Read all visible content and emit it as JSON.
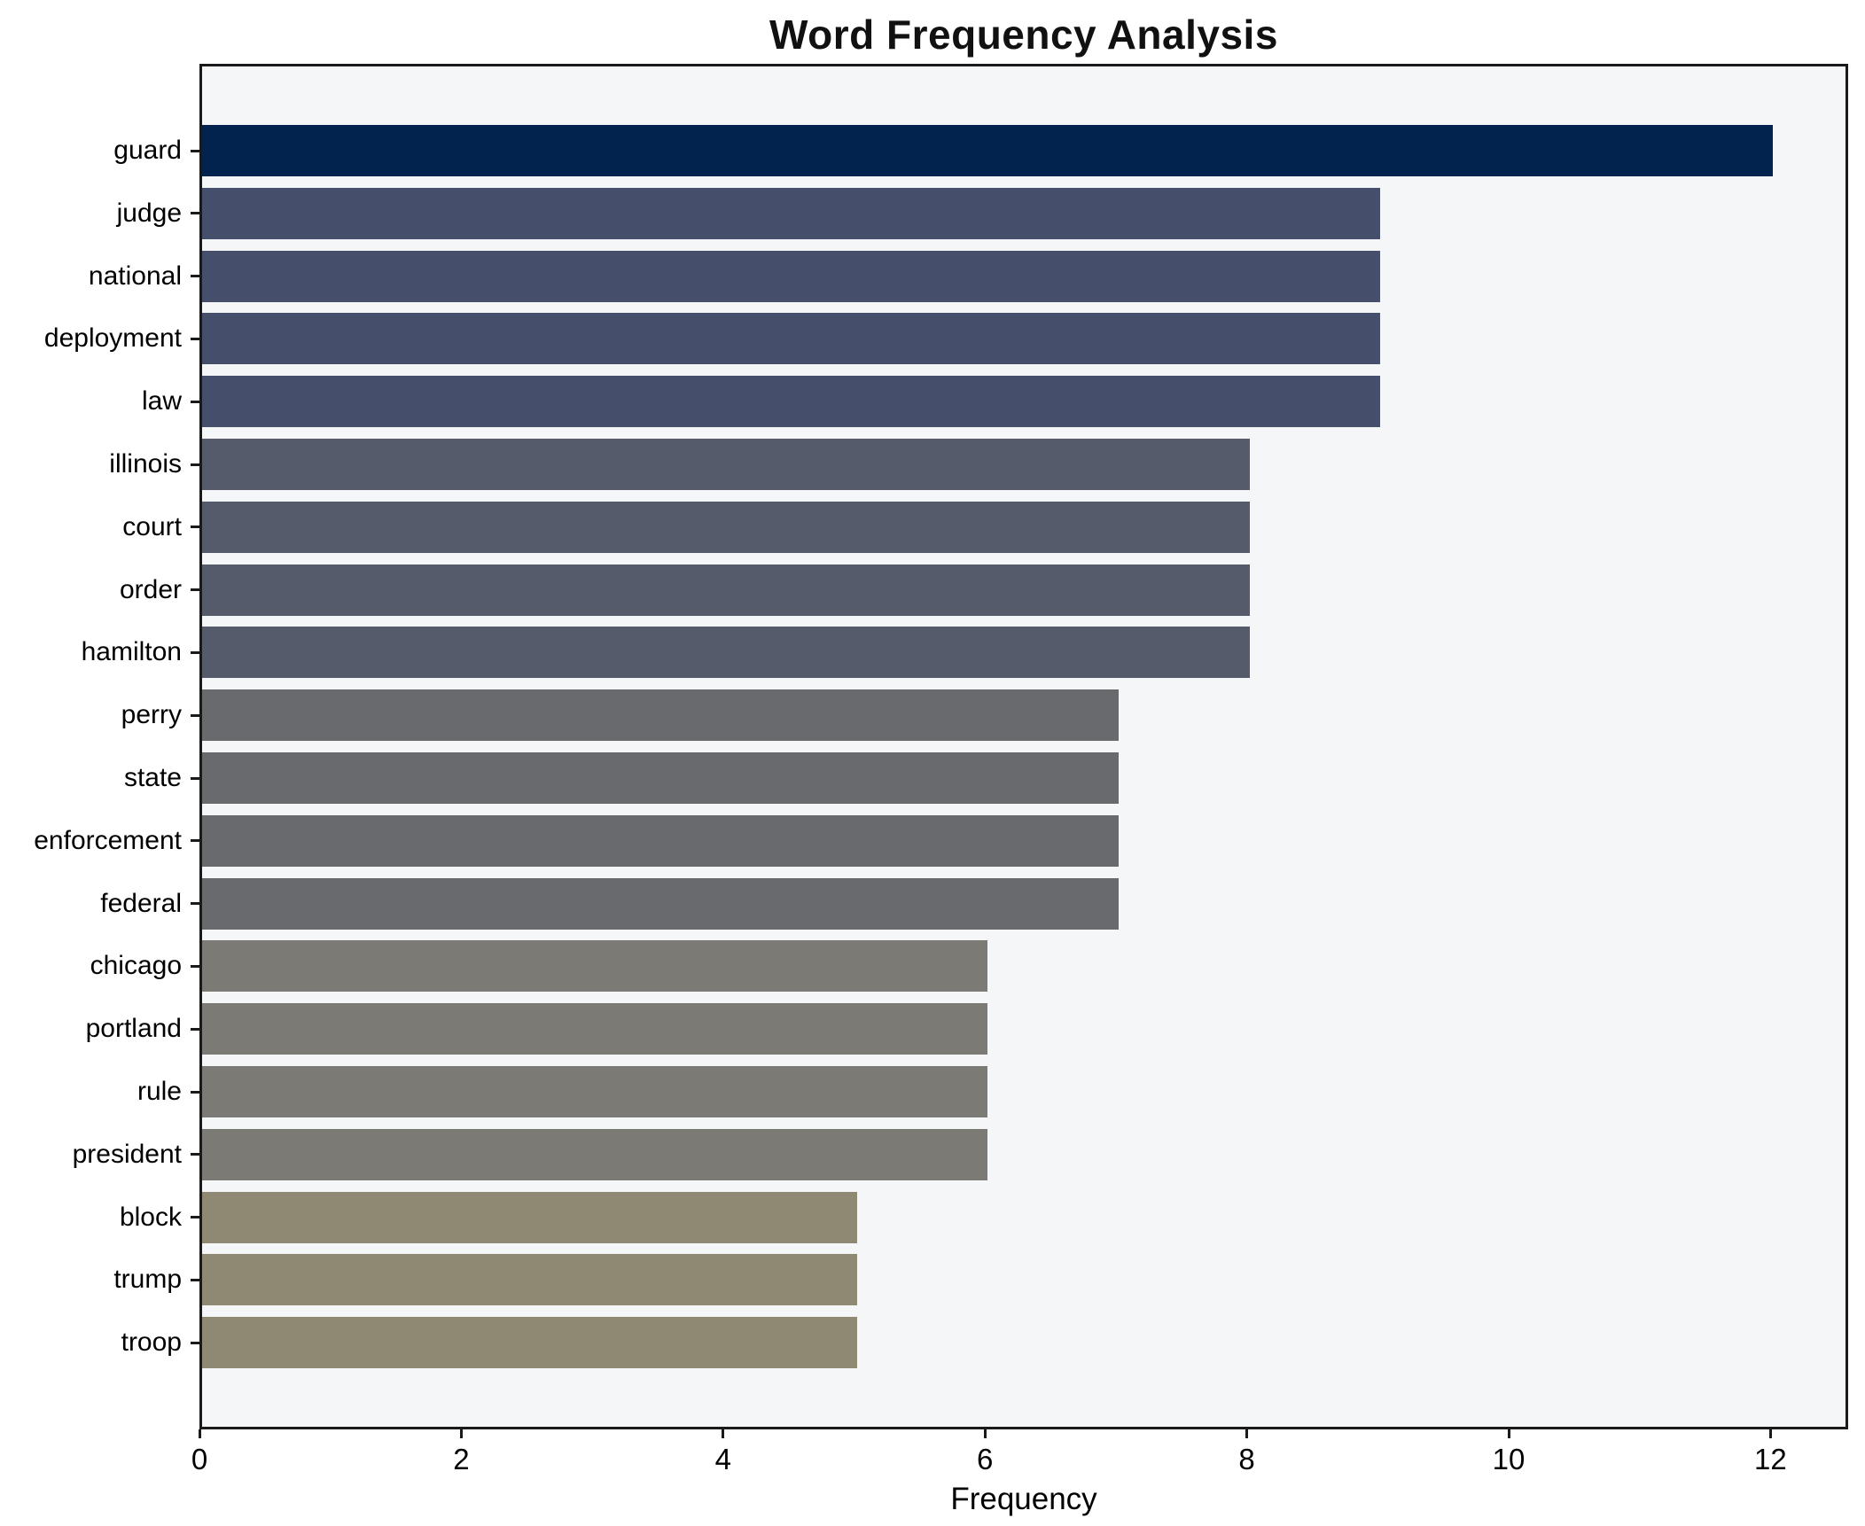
{
  "chart_data": {
    "type": "bar",
    "orientation": "horizontal",
    "title": "Word Frequency Analysis",
    "xlabel": "Frequency",
    "ylabel": "",
    "categories": [
      "guard",
      "judge",
      "national",
      "deployment",
      "law",
      "illinois",
      "court",
      "order",
      "hamilton",
      "perry",
      "state",
      "enforcement",
      "federal",
      "chicago",
      "portland",
      "rule",
      "president",
      "block",
      "trump",
      "troop"
    ],
    "values": [
      12,
      9,
      9,
      9,
      9,
      8,
      8,
      8,
      8,
      7,
      7,
      7,
      7,
      6,
      6,
      6,
      6,
      5,
      5,
      5
    ],
    "bar_colors": [
      "#02234d",
      "#454f6b",
      "#454f6b",
      "#454f6b",
      "#454f6b",
      "#565b6b",
      "#565b6b",
      "#565b6b",
      "#565b6b",
      "#696a6e",
      "#696a6e",
      "#696a6e",
      "#696a6e",
      "#7b7a74",
      "#7b7a74",
      "#7b7a74",
      "#7b7a74",
      "#8f8873",
      "#8f8873",
      "#8f8873"
    ],
    "xlim": [
      0,
      12.6
    ],
    "xticks": [
      0,
      2,
      4,
      6,
      8,
      10,
      12
    ],
    "grid": false,
    "legend_position": "none",
    "plot_background": "#f5f6f7",
    "figure_background": "#ffffff",
    "spine_color": "#1a1a1a"
  }
}
